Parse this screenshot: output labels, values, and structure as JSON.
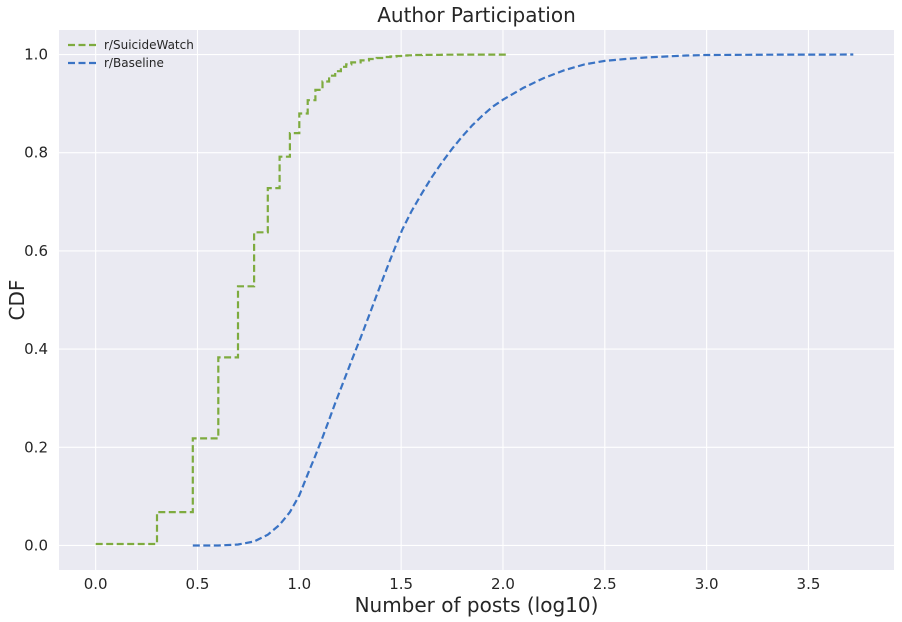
{
  "chart_data": {
    "type": "line",
    "title": "Author Participation",
    "xlabel": "Number of posts (log10)",
    "ylabel": "CDF",
    "xlim": [
      -0.18,
      3.92
    ],
    "ylim": [
      -0.05,
      1.05
    ],
    "grid": true,
    "legend_position": "top-left",
    "x_ticks": [
      0.0,
      0.5,
      1.0,
      1.5,
      2.0,
      2.5,
      3.0,
      3.5
    ],
    "x_tick_labels": [
      "0.0",
      "0.5",
      "1.0",
      "1.5",
      "2.0",
      "2.5",
      "3.0",
      "3.5"
    ],
    "y_ticks": [
      0.0,
      0.2,
      0.4,
      0.6,
      0.8,
      1.0
    ],
    "y_tick_labels": [
      "0.0",
      "0.2",
      "0.4",
      "0.6",
      "0.8",
      "1.0"
    ],
    "series": [
      {
        "name": "r/SuicideWatch",
        "color": "#7eab3f",
        "step": true,
        "x": [
          0.0,
          0.301,
          0.477,
          0.602,
          0.699,
          0.778,
          0.845,
          0.903,
          0.954,
          1.0,
          1.041,
          1.079,
          1.114,
          1.146,
          1.176,
          1.204,
          1.23,
          1.255,
          1.301,
          1.342,
          1.38,
          1.415,
          1.447,
          1.477,
          1.505,
          1.531,
          1.556,
          1.602,
          1.699,
          1.778,
          1.903,
          2.025
        ],
        "y": [
          0.003,
          0.068,
          0.218,
          0.383,
          0.528,
          0.638,
          0.728,
          0.792,
          0.84,
          0.88,
          0.907,
          0.928,
          0.945,
          0.957,
          0.966,
          0.975,
          0.98,
          0.984,
          0.988,
          0.991,
          0.993,
          0.995,
          0.996,
          0.997,
          0.998,
          0.9985,
          0.999,
          0.9993,
          0.9996,
          0.9998,
          0.9999,
          1.0
        ]
      },
      {
        "name": "r/Baseline",
        "color": "#3a73c4",
        "step": false,
        "x": [
          0.477,
          0.602,
          0.699,
          0.778,
          0.845,
          0.903,
          0.954,
          1.0,
          1.041,
          1.079,
          1.114,
          1.146,
          1.176,
          1.204,
          1.23,
          1.255,
          1.279,
          1.301,
          1.322,
          1.342,
          1.38,
          1.415,
          1.447,
          1.477,
          1.505,
          1.55,
          1.6,
          1.65,
          1.7,
          1.75,
          1.8,
          1.85,
          1.9,
          1.95,
          2.0,
          2.1,
          2.2,
          2.3,
          2.4,
          2.5,
          2.6,
          2.7,
          2.8,
          2.9,
          3.0,
          3.2,
          3.4,
          3.6,
          3.72
        ],
        "y": [
          0.0,
          0.0,
          0.002,
          0.008,
          0.022,
          0.042,
          0.068,
          0.102,
          0.145,
          0.183,
          0.22,
          0.256,
          0.29,
          0.32,
          0.348,
          0.375,
          0.4,
          0.423,
          0.446,
          0.468,
          0.51,
          0.548,
          0.583,
          0.614,
          0.643,
          0.68,
          0.716,
          0.75,
          0.78,
          0.808,
          0.833,
          0.856,
          0.876,
          0.894,
          0.908,
          0.932,
          0.952,
          0.968,
          0.98,
          0.987,
          0.991,
          0.994,
          0.996,
          0.998,
          0.999,
          0.9995,
          0.9998,
          0.9999,
          1.0
        ]
      }
    ]
  }
}
